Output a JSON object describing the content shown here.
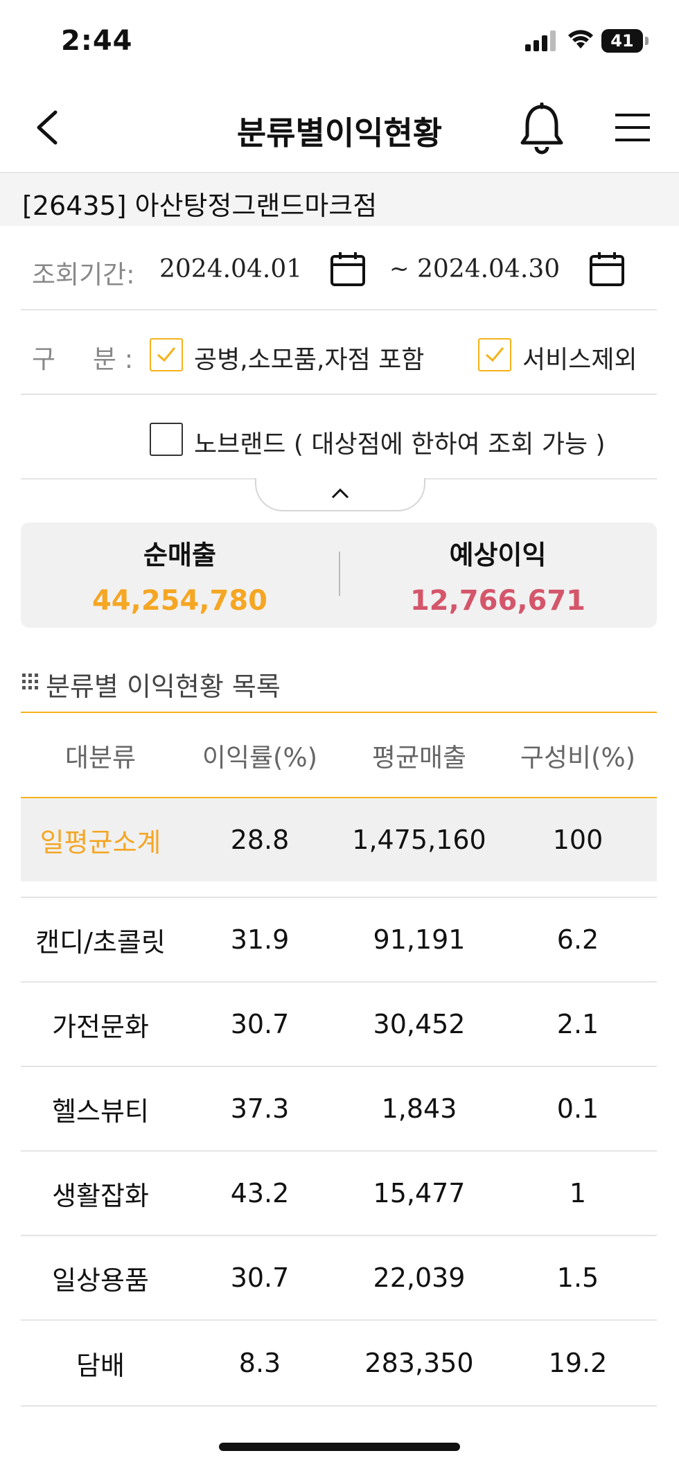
{
  "status_bar": {
    "time": "2:44",
    "battery": "41"
  },
  "nav": {
    "title": "분류별이익현황",
    "back_icon": "chevron-left-icon",
    "bell_icon": "bell-icon",
    "menu_icon": "hamburger-icon"
  },
  "store": {
    "name": "[26435] 아산탕정그랜드마크점"
  },
  "query": {
    "period_label": "조회기간:",
    "start_date": "2024.04.01",
    "separator": "~",
    "end_date": "2024.04.30",
    "category_label_1": "구",
    "category_label_2": "분 :",
    "options": [
      {
        "label": "공병,소모품,자점 포함",
        "checked": true
      },
      {
        "label": "서비스제외",
        "checked": true
      },
      {
        "label": "노브랜드 ( 대상점에 한하여 조회 가능 )",
        "checked": false
      }
    ]
  },
  "summary": {
    "net_sales_label": "순매출",
    "net_sales_value": "44,254,780",
    "expected_profit_label": "예상이익",
    "expected_profit_value": "12,766,671",
    "colors": {
      "net_sales": "#f5a623",
      "expected_profit": "#d4566a"
    }
  },
  "list": {
    "title": "분류별 이익현황 목록",
    "columns": [
      "대분류",
      "이익률(%)",
      "평균매출",
      "구성비(%)"
    ],
    "subtotal": {
      "name": "일평균소계",
      "margin": "28.8",
      "avg_sales": "1,475,160",
      "ratio": "100"
    },
    "rows": [
      {
        "name": "캔디/초콜릿",
        "margin": "31.9",
        "avg_sales": "91,191",
        "ratio": "6.2"
      },
      {
        "name": "가전문화",
        "margin": "30.7",
        "avg_sales": "30,452",
        "ratio": "2.1"
      },
      {
        "name": "헬스뷰티",
        "margin": "37.3",
        "avg_sales": "1,843",
        "ratio": "0.1"
      },
      {
        "name": "생활잡화",
        "margin": "43.2",
        "avg_sales": "15,477",
        "ratio": "1"
      },
      {
        "name": "일상용품",
        "margin": "30.7",
        "avg_sales": "22,039",
        "ratio": "1.5"
      },
      {
        "name": "담배",
        "margin": "8.3",
        "avg_sales": "283,350",
        "ratio": "19.2"
      }
    ]
  },
  "colors": {
    "accent": "#f5b21a",
    "subtotal_text": "#f5a623"
  }
}
